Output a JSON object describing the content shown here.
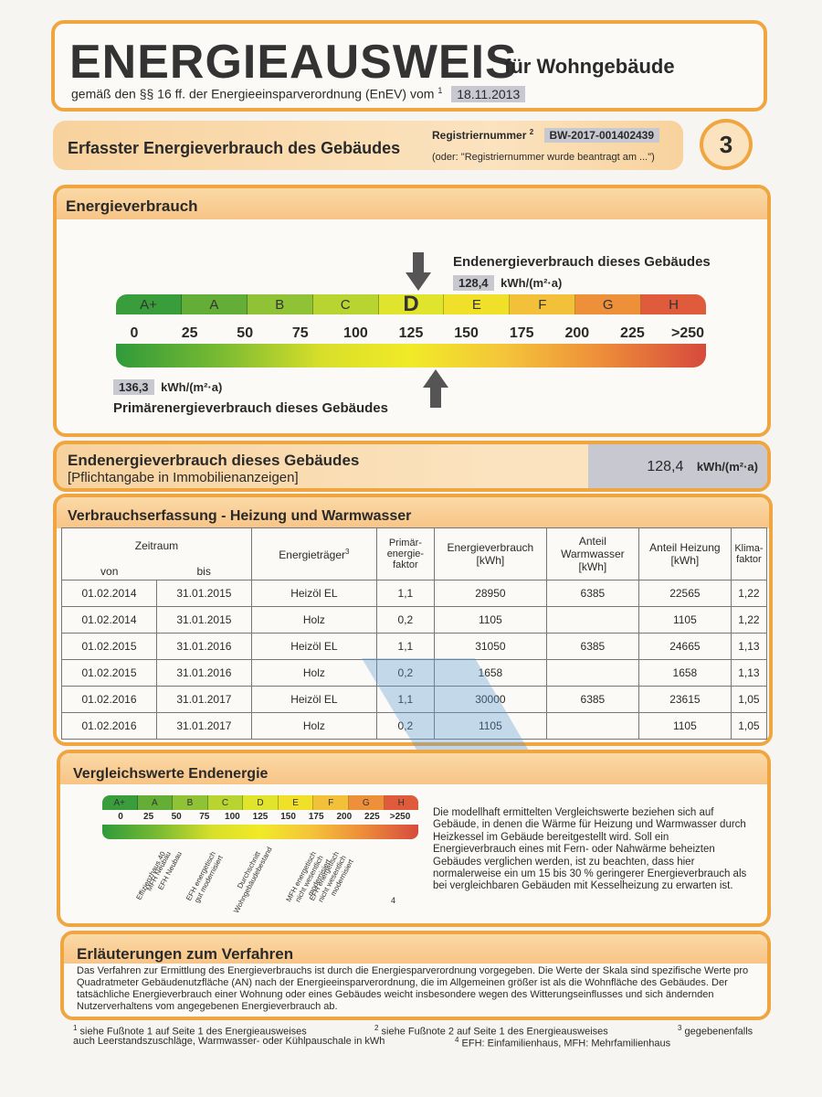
{
  "header": {
    "title": "ENERGIEAUSWEIS",
    "title_suffix": "für Wohngebäude",
    "subtitle": "gemäß den §§ 16 ff. der Energieeinsparverordnung (EnEV) vom",
    "subtitle_sup": "1",
    "date": "18.11.2013"
  },
  "section_header": {
    "title": "Erfasster Energieverbrauch des Gebäudes",
    "reg_label": "Registriernummer",
    "reg_sup": "2",
    "reg_value": "BW-2017-001402439",
    "reg_note": "(oder: \"Registriernummer wurde beantragt am ...\")",
    "page_number": "3"
  },
  "energieverbrauch": {
    "title": "Energieverbrauch",
    "end_label": "Endenergieverbrauch dieses Gebäudes",
    "end_value": "128,4",
    "end_unit": "kWh/(m²·a)",
    "primary_value": "136,3",
    "primary_unit": "kWh/(m²·a)",
    "primary_label": "Primärenergieverbrauch dieses Gebäudes",
    "classes": [
      "A+",
      "A",
      "B",
      "C",
      "D",
      "E",
      "F",
      "G",
      "H"
    ],
    "active_class": "D",
    "ticks": [
      "0",
      "25",
      "50",
      "75",
      "100",
      "125",
      "150",
      "175",
      "200",
      "225",
      ">250"
    ],
    "end_marker": 128.4,
    "primary_marker": 136.3
  },
  "pflicht": {
    "title": "Endenergieverbrauch dieses Gebäudes",
    "subtitle": "[Pflichtangabe in Immobilienanzeigen]",
    "value": "128,4",
    "unit": "kWh/(m²·a)"
  },
  "verbrauch": {
    "title": "Verbrauchserfassung - Heizung und Warmwasser",
    "headers": {
      "zeitraum": "Zeitraum",
      "von": "von",
      "bis": "bis",
      "traeger": "Energieträger",
      "traeger_sup": "3",
      "primaer": "Primär-\nenergie-\nfaktor",
      "energie": "Energieverbrauch\n[kWh]",
      "ww": "Anteil\nWarmwasser\n[kWh]",
      "heizung": "Anteil Heizung\n[kWh]",
      "klima": "Klima-\nfaktor"
    },
    "rows": [
      [
        "01.02.2014",
        "31.01.2015",
        "Heizöl EL",
        "1,1",
        "28950",
        "6385",
        "22565",
        "1,22"
      ],
      [
        "01.02.2014",
        "31.01.2015",
        "Holz",
        "0,2",
        "1105",
        "",
        "1105",
        "1,22"
      ],
      [
        "01.02.2015",
        "31.01.2016",
        "Heizöl EL",
        "1,1",
        "31050",
        "6385",
        "24665",
        "1,13"
      ],
      [
        "01.02.2015",
        "31.01.2016",
        "Holz",
        "0,2",
        "1658",
        "",
        "1658",
        "1,13"
      ],
      [
        "01.02.2016",
        "31.01.2017",
        "Heizöl EL",
        "1,1",
        "30000",
        "6385",
        "23615",
        "1,05"
      ],
      [
        "01.02.2016",
        "31.01.2017",
        "Holz",
        "0,2",
        "1105",
        "",
        "1105",
        "1,05"
      ]
    ]
  },
  "vergleich": {
    "title": "Vergleichswerte Endenergie",
    "classes": [
      "A+",
      "A",
      "B",
      "C",
      "D",
      "E",
      "F",
      "G",
      "H"
    ],
    "ticks": [
      "0",
      "25",
      "50",
      "75",
      "100",
      "125",
      "150",
      "175",
      "200",
      "225",
      ">250"
    ],
    "refs": [
      "Effizienzhaus 40",
      "MFH Neubau",
      "EFH Neubau",
      "EFH energetisch gut modernisiert",
      "Durchschnitt Wohngebäudebestand",
      "MFH energetisch nicht wesentlich modernisiert",
      "EFH energetisch nicht wesentlich modernisiert"
    ],
    "footnote_mark": "4",
    "text": "Die modellhaft ermittelten Vergleichswerte beziehen sich auf Gebäude, in denen die Wärme für Heizung und Warmwasser durch Heizkessel im Gebäude bereitgestellt wird. Soll ein Energieverbrauch eines mit Fern- oder Nahwärme beheizten Gebäudes verglichen werden, ist zu beachten, dass hier normalerweise ein um 15 bis 30 % geringerer Energieverbrauch als bei vergleichbaren Gebäuden mit Kesselheizung zu erwarten ist."
  },
  "erlaeuterung": {
    "title": "Erläuterungen zum Verfahren",
    "text": "Das Verfahren zur Ermittlung des Energieverbrauchs ist durch die Energiesparverordnung vorgegeben. Die Werte der Skala sind spezifische Werte pro Quadratmeter Gebäudenutzfläche (AN) nach der Energieeinsparverordnung, die im Allgemeinen größer ist als die Wohnfläche des Gebäudes. Der tatsächliche Energieverbrauch einer Wohnung oder eines Gebäudes weicht insbesondere wegen des Witterungseinflusses und sich ändernden Nutzerverhaltens vom angegebenen Energieverbrauch ab."
  },
  "footnotes": {
    "f1": "siehe Fußnote 1 auf Seite 1 des Energieausweises",
    "f2": "siehe Fußnote 2 auf Seite 1 des Energieausweises",
    "f3": "gegebenenfalls",
    "f1b": "auch Leerstandszuschläge, Warmwasser- oder Kühlpauschale in kWh",
    "f4": "EFH: Einfamilienhaus, MFH: Mehrfamilienhaus",
    "m1": "1",
    "m2": "2",
    "m3": "3",
    "m4": "4"
  }
}
